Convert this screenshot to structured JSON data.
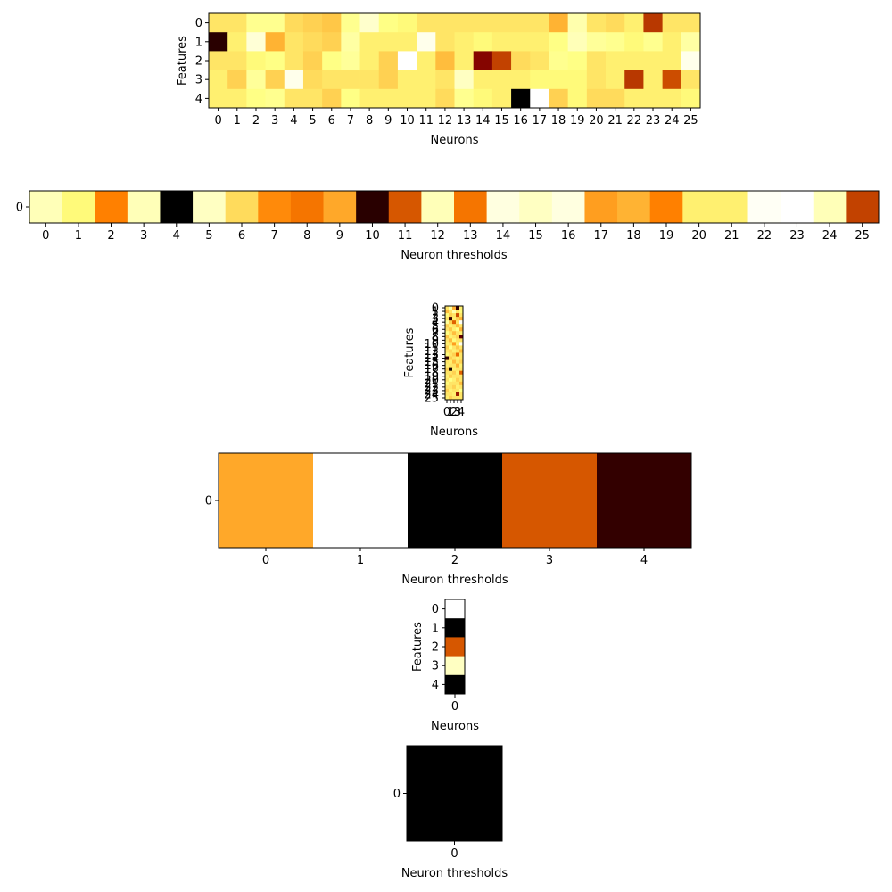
{
  "colormap": "afmhot",
  "chart_data": [
    {
      "type": "heatmap",
      "xlabel": "Neurons",
      "ylabel": "Features",
      "x_ticks": [
        "0",
        "1",
        "2",
        "3",
        "4",
        "5",
        "6",
        "7",
        "8",
        "9",
        "10",
        "11",
        "12",
        "13",
        "14",
        "15",
        "16",
        "17",
        "18",
        "19",
        "20",
        "21",
        "22",
        "23",
        "24",
        "25"
      ],
      "y_ticks": [
        "0",
        "1",
        "2",
        "3",
        "4"
      ],
      "values": [
        [
          0.7,
          0.7,
          0.78,
          0.78,
          0.68,
          0.66,
          0.64,
          0.78,
          0.9,
          0.76,
          0.74,
          0.7,
          0.7,
          0.7,
          0.7,
          0.7,
          0.7,
          0.7,
          0.6,
          0.84,
          0.7,
          0.68,
          0.72,
          0.36,
          0.7,
          0.7
        ],
        [
          0.08,
          0.72,
          0.92,
          0.6,
          0.7,
          0.68,
          0.66,
          0.82,
          0.72,
          0.72,
          0.72,
          0.96,
          0.7,
          0.72,
          0.74,
          0.72,
          0.72,
          0.72,
          0.76,
          0.86,
          0.8,
          0.78,
          0.74,
          0.78,
          0.72,
          0.82
        ],
        [
          0.7,
          0.7,
          0.74,
          0.76,
          0.7,
          0.66,
          0.76,
          0.8,
          0.72,
          0.66,
          1.0,
          0.72,
          0.62,
          0.72,
          0.26,
          0.38,
          0.68,
          0.7,
          0.78,
          0.76,
          0.7,
          0.72,
          0.72,
          0.72,
          0.72,
          0.96
        ],
        [
          0.72,
          0.66,
          0.8,
          0.66,
          0.96,
          0.68,
          0.7,
          0.7,
          0.7,
          0.66,
          0.72,
          0.72,
          0.7,
          0.88,
          0.72,
          0.72,
          0.72,
          0.74,
          0.74,
          0.74,
          0.7,
          0.72,
          0.36,
          0.72,
          0.4,
          0.7
        ],
        [
          0.72,
          0.72,
          0.76,
          0.78,
          0.7,
          0.7,
          0.66,
          0.76,
          0.72,
          0.72,
          0.72,
          0.72,
          0.68,
          0.78,
          0.74,
          0.72,
          0.0,
          1.0,
          0.66,
          0.74,
          0.68,
          0.68,
          0.72,
          0.72,
          0.72,
          0.74
        ]
      ]
    },
    {
      "type": "heatmap",
      "xlabel": "Neuron thresholds",
      "ylabel": "",
      "x_ticks": [
        "0",
        "1",
        "2",
        "3",
        "4",
        "5",
        "6",
        "7",
        "8",
        "9",
        "10",
        "11",
        "12",
        "13",
        "14",
        "15",
        "16",
        "17",
        "18",
        "19",
        "20",
        "21",
        "22",
        "23",
        "24",
        "25"
      ],
      "y_ticks": [
        "0"
      ],
      "values": [
        [
          0.86,
          0.74,
          0.5,
          0.86,
          0.0,
          0.88,
          0.68,
          0.52,
          0.48,
          0.58,
          0.08,
          0.42,
          0.86,
          0.48,
          0.94,
          0.88,
          0.94,
          0.56,
          0.6,
          0.5,
          0.72,
          0.72,
          0.98,
          1.0,
          0.86,
          0.38
        ]
      ]
    },
    {
      "type": "heatmap",
      "xlabel": "Neurons",
      "ylabel": "Features",
      "x_ticks": [
        "0",
        "1",
        "2",
        "3",
        "4"
      ],
      "y_ticks": [
        "0",
        "1",
        "2",
        "3",
        "4",
        "5",
        "6",
        "7",
        "8",
        "9",
        "10",
        "11",
        "12",
        "13",
        "14",
        "15",
        "16",
        "17",
        "18",
        "19",
        "20",
        "21",
        "22",
        "23",
        "24",
        "25"
      ],
      "values": [
        [
          0.7,
          0.82,
          0.6,
          0.1,
          0.72
        ],
        [
          0.62,
          0.7,
          0.84,
          0.7,
          0.74
        ],
        [
          0.74,
          0.66,
          0.7,
          0.4,
          0.7
        ],
        [
          0.7,
          0.1,
          0.72,
          0.66,
          0.6
        ],
        [
          0.8,
          0.66,
          0.44,
          0.7,
          0.98
        ],
        [
          0.66,
          0.72,
          0.7,
          0.62,
          0.7
        ],
        [
          0.7,
          0.64,
          0.72,
          0.76,
          0.6
        ],
        [
          0.76,
          0.7,
          0.62,
          0.7,
          0.72
        ],
        [
          0.64,
          0.72,
          0.7,
          0.66,
          0.2
        ],
        [
          0.7,
          0.62,
          0.74,
          0.7,
          0.7
        ],
        [
          0.72,
          0.7,
          0.56,
          0.72,
          0.96
        ],
        [
          0.66,
          0.76,
          0.7,
          0.64,
          0.7
        ],
        [
          0.7,
          0.68,
          0.72,
          0.7,
          0.62
        ],
        [
          0.74,
          0.7,
          0.66,
          0.46,
          0.7
        ],
        [
          0.1,
          0.66,
          0.7,
          0.72,
          0.7
        ],
        [
          0.7,
          0.72,
          0.62,
          0.7,
          0.66
        ],
        [
          0.72,
          0.7,
          0.7,
          0.6,
          0.72
        ],
        [
          0.66,
          0.04,
          0.72,
          0.7,
          0.7
        ],
        [
          0.7,
          0.7,
          0.66,
          0.72,
          0.44
        ],
        [
          0.72,
          0.66,
          0.7,
          0.7,
          0.7
        ],
        [
          0.7,
          0.76,
          0.72,
          0.66,
          0.7
        ],
        [
          0.74,
          0.7,
          0.7,
          0.7,
          0.62
        ],
        [
          0.7,
          0.7,
          0.66,
          0.72,
          0.7
        ],
        [
          0.66,
          0.72,
          0.7,
          0.7,
          0.76
        ],
        [
          0.7,
          0.7,
          0.72,
          0.3,
          0.7
        ],
        [
          0.72,
          0.66,
          0.7,
          0.7,
          0.7
        ]
      ]
    },
    {
      "type": "heatmap",
      "xlabel": "Neuron thresholds",
      "ylabel": "",
      "x_ticks": [
        "0",
        "1",
        "2",
        "3",
        "4"
      ],
      "y_ticks": [
        "0"
      ],
      "values": [
        [
          0.58,
          1.0,
          0.0,
          0.42,
          0.1
        ]
      ]
    },
    {
      "type": "heatmap",
      "xlabel": "Neurons",
      "ylabel": "Features",
      "x_ticks": [
        "0"
      ],
      "y_ticks": [
        "0",
        "1",
        "2",
        "3",
        "4"
      ],
      "values": [
        [
          1.0
        ],
        [
          0.0
        ],
        [
          0.42
        ],
        [
          0.88
        ],
        [
          0.0
        ]
      ]
    },
    {
      "type": "heatmap",
      "xlabel": "Neuron thresholds",
      "ylabel": "",
      "x_ticks": [
        "0"
      ],
      "y_ticks": [
        "0"
      ],
      "values": [
        [
          0.0
        ]
      ]
    }
  ]
}
